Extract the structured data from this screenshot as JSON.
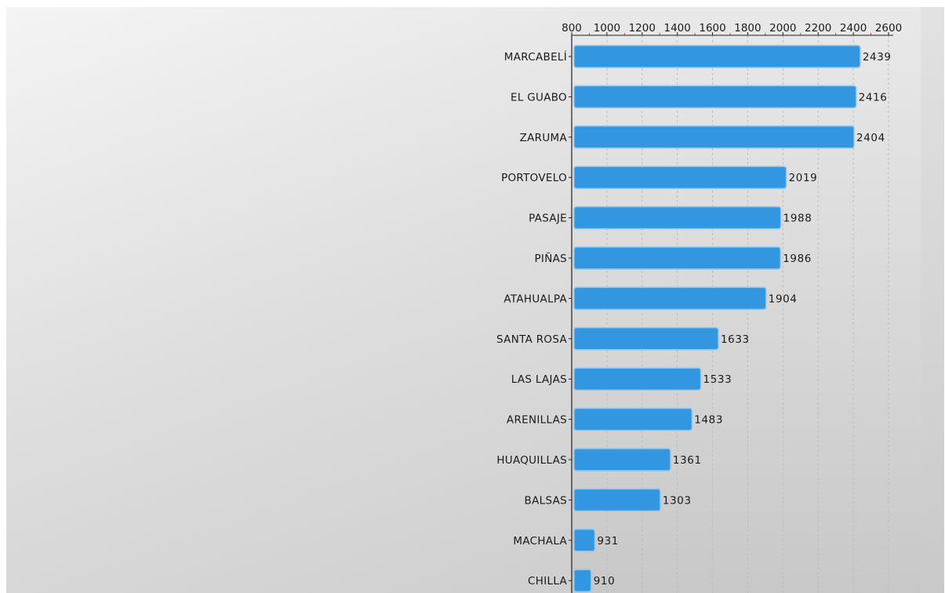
{
  "chart_data": {
    "type": "bar",
    "orientation": "horizontal",
    "categories": [
      "MARCABELÍ",
      "EL GUABO",
      "ZARUMA",
      "PORTOVELO",
      "PASAJE",
      "PIÑAS",
      "ATAHUALPA",
      "SANTA ROSA",
      "LAS LAJAS",
      "ARENILLAS",
      "HUAQUILLAS",
      "BALSAS",
      "MACHALA",
      "CHILLA"
    ],
    "values": [
      2439,
      2416,
      2404,
      2019,
      1988,
      1986,
      1904,
      1633,
      1533,
      1483,
      1361,
      1303,
      931,
      910
    ],
    "value_labels": [
      "2439",
      "2416",
      "2404",
      "2019",
      "1988",
      "1986",
      "1904",
      "1633",
      "1533",
      "1483",
      "1361",
      "1303",
      "931",
      "910"
    ],
    "xlim": [
      800,
      2600
    ],
    "xticks": [
      800,
      1000,
      1200,
      1400,
      1600,
      1800,
      2000,
      2200,
      2400,
      2600
    ],
    "xtick_labels": [
      "800",
      "1000",
      "1200",
      "1400",
      "1600",
      "1800",
      "2000",
      "2200",
      "2400",
      "2600"
    ],
    "x_axis_position": "top",
    "grid": true,
    "legend": "none",
    "title": "",
    "xlabel": "",
    "ylabel": "",
    "colors": {
      "bar": "#3396e0",
      "bar_edge": "#8fc4ec",
      "axis": "#222222",
      "grid": "#bdbdbd",
      "tick_mark": "#d43c3c"
    }
  }
}
